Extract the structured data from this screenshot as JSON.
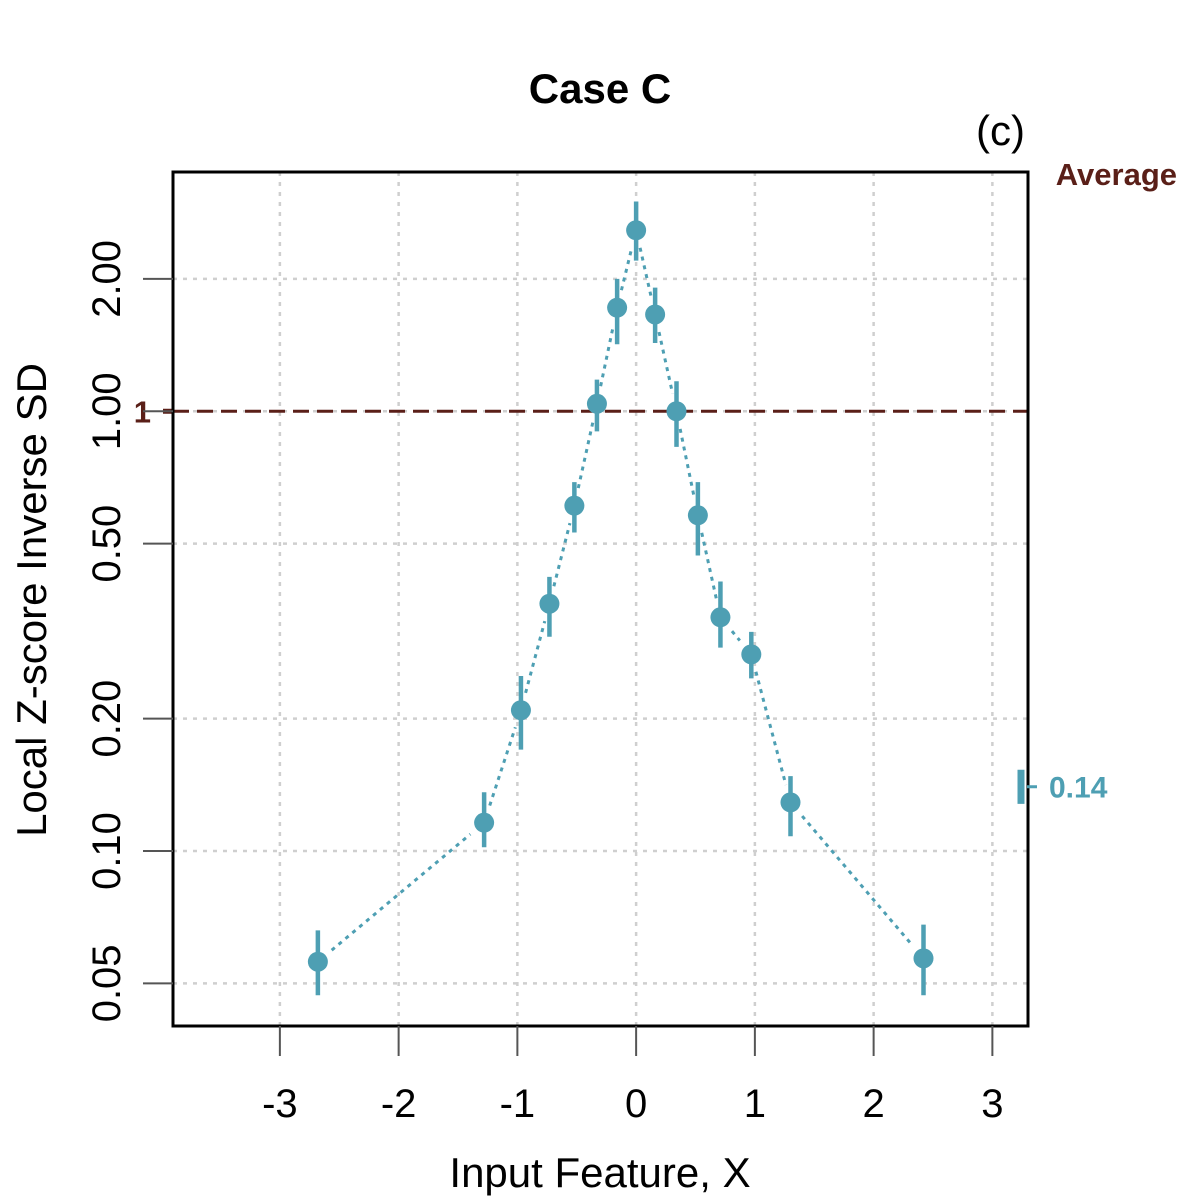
{
  "chart_data": {
    "type": "scatter",
    "title": "Case C",
    "panel_label": "(c)",
    "xlabel": "Input Feature, X",
    "ylabel": "Local Z-score Inverse SD",
    "y_scale": "log",
    "xlim": [
      -3.9,
      3.3
    ],
    "ylim": [
      0.04,
      3.5
    ],
    "x_ticks": [
      -3,
      -2,
      -1,
      0,
      1,
      2,
      3
    ],
    "x_tick_labels": [
      "-3",
      "-2",
      "-1",
      "0",
      "1",
      "2",
      "3"
    ],
    "y_ticks": [
      0.05,
      0.1,
      0.2,
      0.5,
      1.0,
      2.0
    ],
    "y_tick_labels": [
      "0.05",
      "0.10",
      "0.20",
      "0.50",
      "1.00",
      "2.00"
    ],
    "grid": true,
    "series": [
      {
        "name": "Local Z-score Inverse SD",
        "color": "#4e9fb3",
        "x": [
          -2.68,
          -1.28,
          -0.97,
          -0.73,
          -0.52,
          -0.33,
          -0.16,
          0.0,
          0.16,
          0.34,
          0.52,
          0.71,
          0.97,
          1.3,
          2.42
        ],
        "y": [
          0.056,
          0.116,
          0.209,
          0.365,
          0.61,
          1.04,
          1.72,
          2.58,
          1.66,
          1.0,
          0.58,
          0.34,
          0.28,
          0.129,
          0.057
        ],
        "y_low": [
          0.047,
          0.102,
          0.17,
          0.307,
          0.53,
          0.9,
          1.42,
          2.2,
          1.43,
          0.83,
          0.47,
          0.29,
          0.247,
          0.108,
          0.047
        ],
        "y_high": [
          0.066,
          0.136,
          0.25,
          0.42,
          0.69,
          1.18,
          2.0,
          3.0,
          1.91,
          1.17,
          0.69,
          0.41,
          0.315,
          0.148,
          0.068
        ]
      }
    ],
    "reference_line": {
      "y": 1.0,
      "label": "1",
      "color": "#5a1f18",
      "style": "dashed"
    },
    "average": {
      "label": "Average",
      "value": 0.14,
      "value_label": "0.14",
      "low": 0.128,
      "high": 0.153,
      "label_color": "#5a1f18",
      "value_color": "#4e9fb3"
    }
  }
}
